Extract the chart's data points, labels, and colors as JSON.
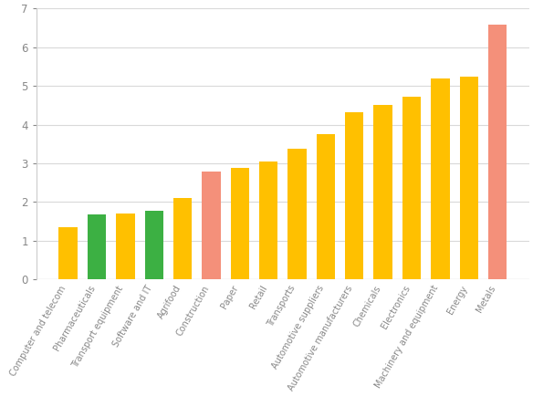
{
  "categories": [
    "Computer and telecom",
    "Pharmaceuticals",
    "Transport equipment",
    "Software and IT",
    "Agrifood",
    "Construction",
    "Paper",
    "Retail",
    "Transports",
    "Automotive suppliers",
    "Automotive manufacturers",
    "Chemicals",
    "Electronics",
    "Machinery and equipment",
    "Energy",
    "Metals"
  ],
  "values": [
    1.35,
    1.68,
    1.7,
    1.78,
    2.1,
    2.78,
    2.87,
    3.05,
    3.37,
    3.75,
    4.33,
    4.5,
    4.72,
    5.2,
    5.23,
    6.58
  ],
  "bar_colors": [
    "#FFC000",
    "#3CB043",
    "#FFC000",
    "#3CB043",
    "#FFC000",
    "#F4907A",
    "#FFC000",
    "#FFC000",
    "#FFC000",
    "#FFC000",
    "#FFC000",
    "#FFC000",
    "#FFC000",
    "#FFC000",
    "#FFC000",
    "#F4907A"
  ],
  "ylim": [
    0,
    7
  ],
  "yticks": [
    0,
    1,
    2,
    3,
    4,
    5,
    6,
    7
  ],
  "background_color": "#ffffff",
  "grid_color": "#d9d9d9",
  "bar_width": 0.65,
  "label_rotation": 60,
  "label_fontsize": 7,
  "ytick_fontsize": 8.5,
  "ytick_color": "#888888",
  "label_color": "#888888"
}
